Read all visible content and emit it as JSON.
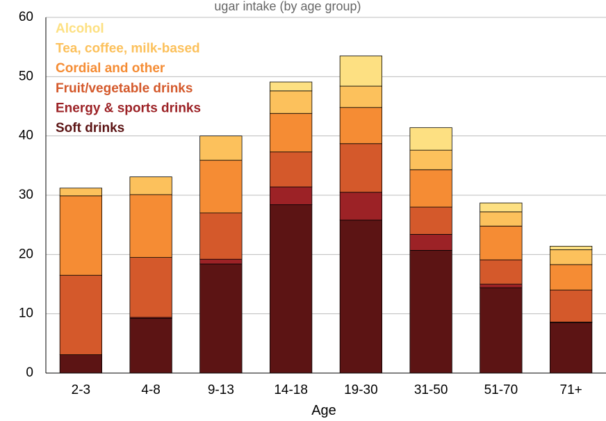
{
  "chart_data": {
    "type": "bar",
    "stacked": true,
    "title": "ugar intake (by age group)",
    "xlabel": "Age",
    "ylabel": "",
    "ylim": [
      0,
      60
    ],
    "yticks": [
      0,
      10,
      20,
      30,
      40,
      50,
      60
    ],
    "grid": true,
    "legend_position": "top-left",
    "categories": [
      "2-3",
      "4-8",
      "9-13",
      "14-18",
      "19-30",
      "31-50",
      "51-70",
      "71+"
    ],
    "series": [
      {
        "name": "Soft drinks",
        "color": "#5c1414",
        "values": [
          3.1,
          9.2,
          18.4,
          28.4,
          25.8,
          20.7,
          14.4,
          8.5
        ]
      },
      {
        "name": "Energy & sports drinks",
        "color": "#9c2226",
        "values": [
          0.0,
          0.2,
          0.8,
          3.0,
          4.7,
          2.7,
          0.6,
          0.1
        ]
      },
      {
        "name": "Fruit/vegetable drinks",
        "color": "#d4592b",
        "values": [
          13.4,
          10.1,
          7.8,
          5.9,
          8.2,
          4.6,
          4.1,
          5.4
        ]
      },
      {
        "name": "Cordial and other",
        "color": "#f58c34",
        "values": [
          13.4,
          10.6,
          8.9,
          6.5,
          6.1,
          6.3,
          5.7,
          4.3
        ]
      },
      {
        "name": "Tea, coffee, milk-based",
        "color": "#fcc15c",
        "values": [
          1.3,
          3.0,
          4.1,
          3.8,
          3.6,
          3.3,
          2.4,
          2.5
        ]
      },
      {
        "name": "Alcohol",
        "color": "#fde082",
        "values": [
          0.0,
          0.0,
          0.0,
          1.5,
          5.1,
          3.8,
          1.5,
          0.6
        ]
      }
    ],
    "legend_order": [
      "Alcohol",
      "Tea, coffee, milk-based",
      "Cordial and other",
      "Fruit/vegetable drinks",
      "Energy & sports drinks",
      "Soft drinks"
    ]
  }
}
